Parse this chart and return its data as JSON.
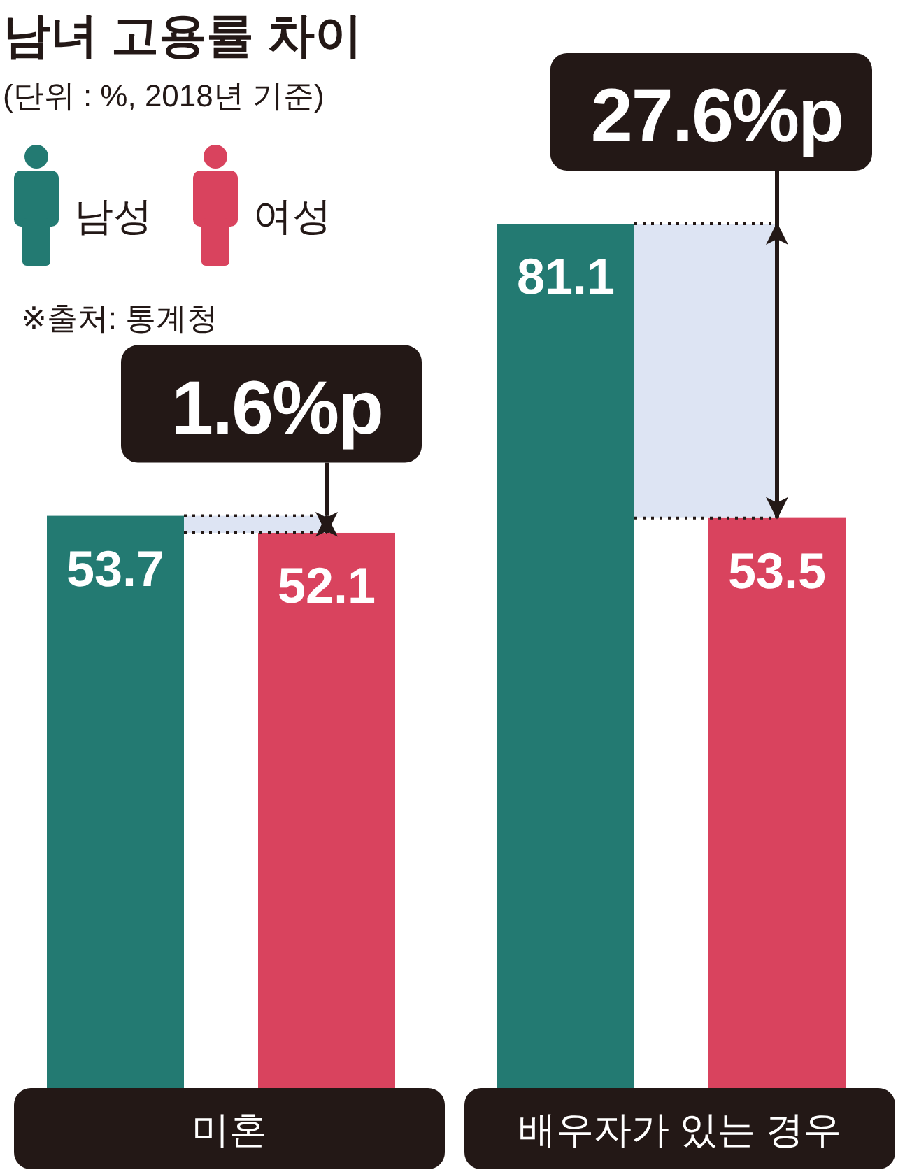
{
  "chart_data": {
    "type": "bar",
    "title": "남녀 고용률 차이",
    "subtitle": "(단위 : %, 2018년 기준)",
    "categories": [
      "미혼",
      "배우자가 있는 경우"
    ],
    "series": [
      {
        "name": "남성",
        "color": "#237a72",
        "values": [
          53.7,
          81.1
        ]
      },
      {
        "name": "여성",
        "color": "#d9435e",
        "values": [
          52.1,
          53.5
        ]
      }
    ],
    "data_labels": true,
    "legend": "top left",
    "bands": [
      {
        "axis": "y",
        "from": 52.1,
        "to": 53.7,
        "label": "1.6%p",
        "color": "#dde4f3"
      },
      {
        "axis": "y",
        "from": 53.5,
        "to": 81.1,
        "label": "27.6%p",
        "color": "#dde4f3"
      }
    ],
    "annotations": [
      "※출처: 통계청"
    ]
  }
}
